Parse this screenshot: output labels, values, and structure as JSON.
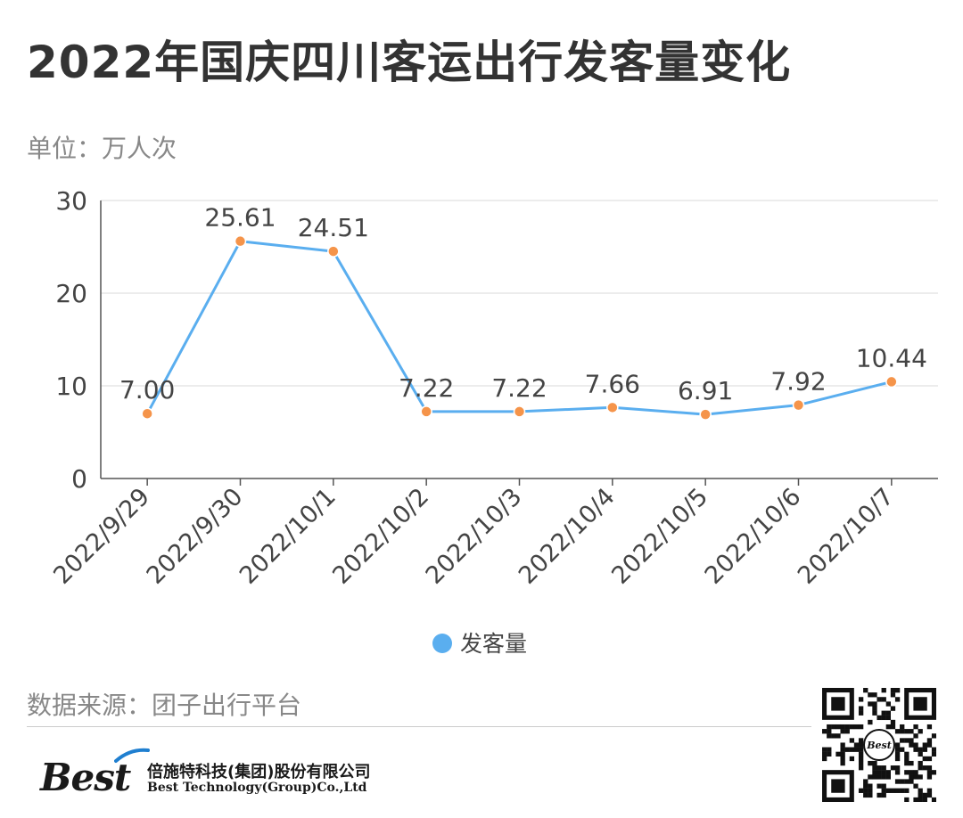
{
  "header": {
    "title": "2022年国庆四川客运出行发客量变化",
    "unit": "单位：万人次"
  },
  "chart_data": {
    "type": "line",
    "categories": [
      "2022/9/29",
      "2022/9/30",
      "2022/10/1",
      "2022/10/2",
      "2022/10/3",
      "2022/10/4",
      "2022/10/5",
      "2022/10/6",
      "2022/10/7"
    ],
    "series": [
      {
        "name": "发客量",
        "values": [
          7.0,
          25.61,
          24.51,
          7.22,
          7.22,
          7.66,
          6.91,
          7.92,
          10.44
        ]
      }
    ],
    "value_labels": [
      "7.00",
      "25.61",
      "24.51",
      "7.22",
      "7.22",
      "7.66",
      "6.91",
      "7.92",
      "10.44"
    ],
    "ylim": [
      0,
      30
    ],
    "yticks": [
      0,
      10,
      20,
      30
    ],
    "grid": true,
    "legend": "bottom-center",
    "line_color": "#5aaeef",
    "marker_color": "#f5944a"
  },
  "footer": {
    "source": "数据来源：团子出行平台",
    "brand": "Best",
    "company_cn": "倍施特科技(集团)股份有限公司",
    "company_en": "Best Technology(Group)Co.,Ltd",
    "qr_center_text": "Best"
  }
}
